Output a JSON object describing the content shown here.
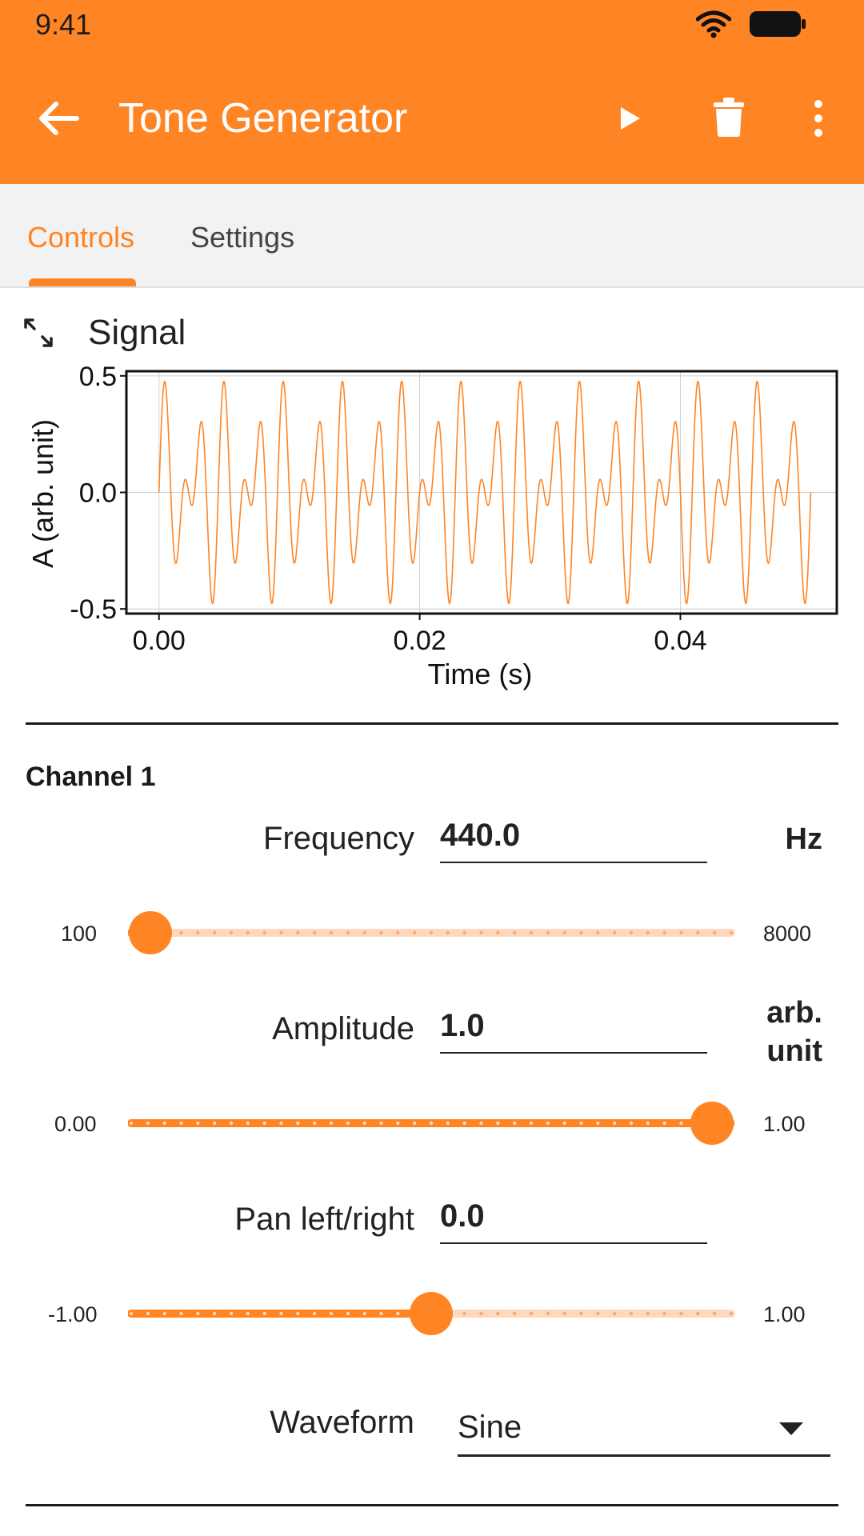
{
  "status": {
    "time": "9:41"
  },
  "appbar": {
    "title": "Tone Generator"
  },
  "tabs": [
    {
      "label": "Controls"
    },
    {
      "label": "Settings"
    }
  ],
  "signal": {
    "title": "Signal",
    "chart_data": {
      "type": "line",
      "title": "",
      "xlabel": "Time (s)",
      "ylabel": "A (arb. unit)",
      "xlim": [
        -0.0025,
        0.052
      ],
      "ylim": [
        -0.52,
        0.52
      ],
      "xticks": [
        "0.00",
        "0.02",
        "0.04"
      ],
      "xtick_values": [
        0.0,
        0.02,
        0.04
      ],
      "yticks": [
        "-0.5",
        "0.0",
        "0.5"
      ],
      "ytick_values": [
        -0.5,
        0.0,
        0.5
      ],
      "grid": true,
      "series": [
        {
          "color": "#ff8424",
          "x_range": [
            0.0,
            0.05
          ],
          "components": [
            {
              "amplitude": 0.25,
              "frequency_hz": 440
            },
            {
              "amplitude": 0.25,
              "frequency_hz": 660
            }
          ],
          "sample_points": [
            {
              "x": 0.0,
              "y": 0.0
            },
            {
              "x": 0.00045,
              "y": 0.5
            },
            {
              "x": 0.0042,
              "y": -0.48
            },
            {
              "x": 0.0091,
              "y": 0.5
            },
            {
              "x": 0.025,
              "y": 0.0
            },
            {
              "x": 0.05,
              "y": 0.0
            }
          ]
        }
      ]
    }
  },
  "channel": {
    "title": "Channel 1",
    "frequency": {
      "label": "Frequency",
      "value": "440.0",
      "unit": "Hz",
      "min": "100",
      "max": "8000",
      "fraction": 0.0
    },
    "amplitude": {
      "label": "Amplitude",
      "value": "1.0",
      "unit_line1": "arb.",
      "unit_line2": "unit",
      "min": "0.00",
      "max": "1.00",
      "fraction": 1.0
    },
    "pan": {
      "label": "Pan left/right",
      "value": "0.0",
      "min": "-1.00",
      "max": "1.00",
      "fraction": 0.5
    },
    "waveform": {
      "label": "Waveform",
      "value": "Sine"
    }
  },
  "colors": {
    "accent": "#ff8424",
    "accent_light": "#fdd8bd"
  }
}
